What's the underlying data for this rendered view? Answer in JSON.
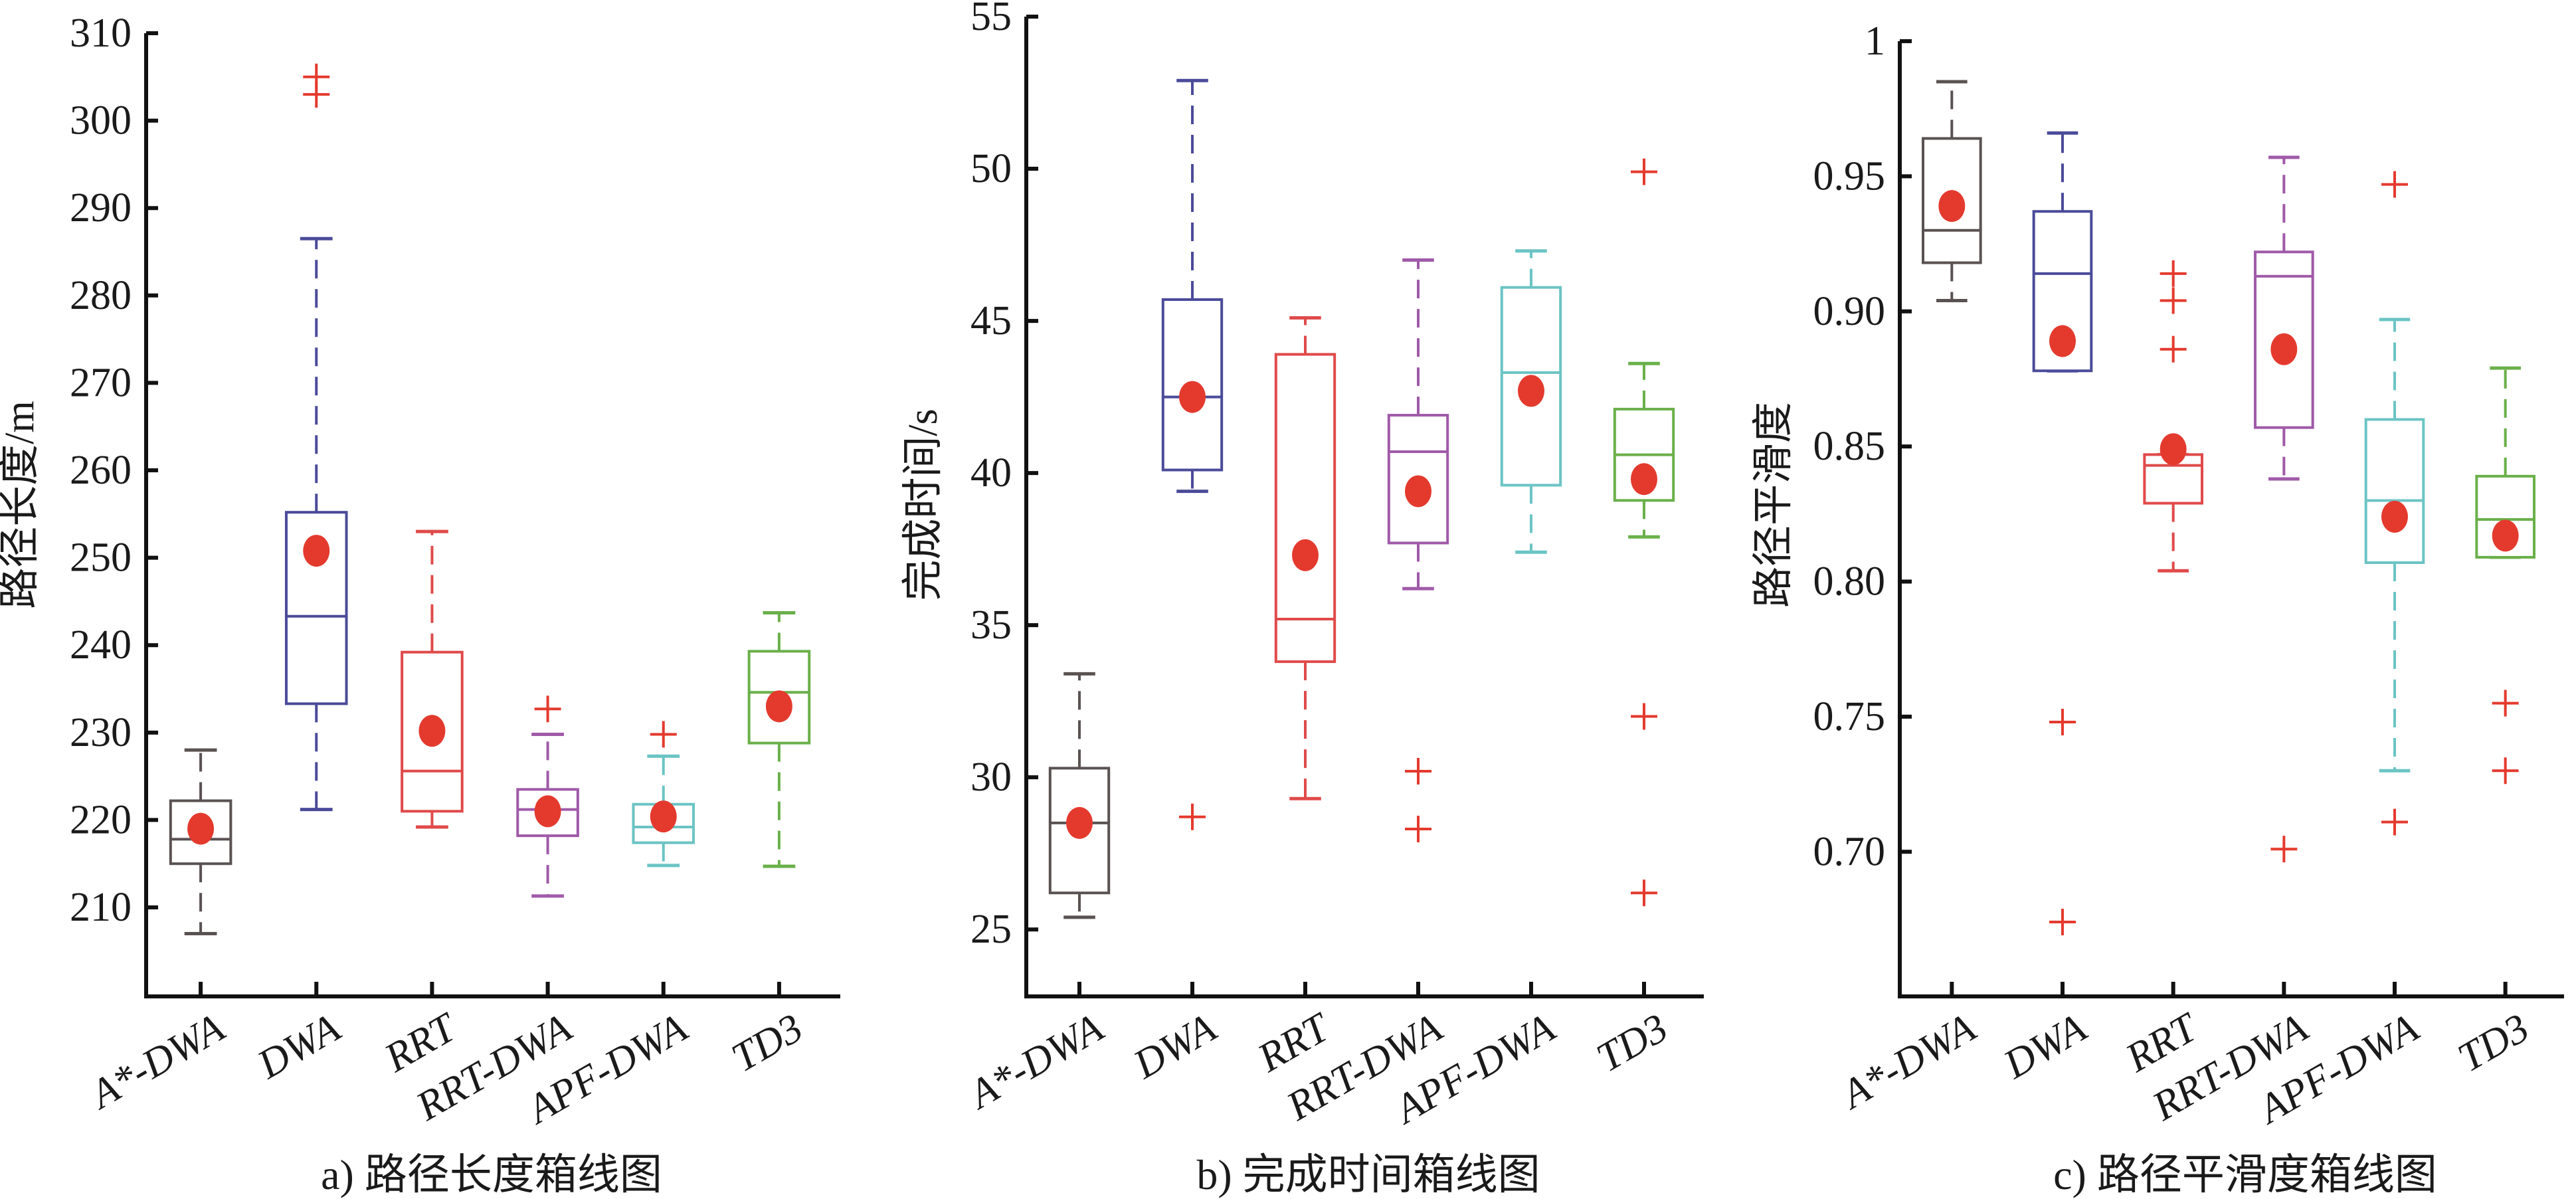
{
  "chart_data": [
    {
      "type": "box",
      "caption": "a) 路径长度箱线图",
      "ylabel": "路径长度/m",
      "ylim": [
        204,
        310
      ],
      "yticks": [
        210,
        220,
        230,
        240,
        250,
        260,
        270,
        280,
        290,
        300,
        310
      ],
      "ytick_labels": [
        "210",
        "220",
        "230",
        "240",
        "250",
        "260",
        "270",
        "280",
        "290",
        "300",
        "310"
      ],
      "categories": [
        "A*-DWA",
        "DWA",
        "RRT",
        "RRT-DWA",
        "APF-DWA",
        "TD3"
      ],
      "colors": [
        "#5a5252",
        "#4b4b9a",
        "#e04a4a",
        "#a05aa8",
        "#6cc4c4",
        "#6ab04a"
      ],
      "series": [
        {
          "name": "A*-DWA",
          "whisker_low": 207.0,
          "q1": 215.0,
          "median": 217.8,
          "q3": 222.2,
          "whisker_high": 228.0,
          "mean": 219.0,
          "outliers": []
        },
        {
          "name": "DWA",
          "whisker_low": 221.2,
          "q1": 233.3,
          "median": 243.3,
          "q3": 255.2,
          "whisker_high": 286.5,
          "mean": 250.8,
          "outliers": [
            303.0,
            305.0
          ]
        },
        {
          "name": "RRT",
          "whisker_low": 219.2,
          "q1": 221.0,
          "median": 225.6,
          "q3": 239.2,
          "whisker_high": 253.0,
          "mean": 230.2,
          "outliers": []
        },
        {
          "name": "RRT-DWA",
          "whisker_low": 211.3,
          "q1": 218.2,
          "median": 221.2,
          "q3": 223.5,
          "whisker_high": 229.8,
          "mean": 221.0,
          "outliers": [
            232.7
          ]
        },
        {
          "name": "APF-DWA",
          "whisker_low": 214.8,
          "q1": 217.4,
          "median": 219.2,
          "q3": 221.8,
          "whisker_high": 227.3,
          "mean": 220.4,
          "outliers": [
            229.8
          ]
        },
        {
          "name": "TD3",
          "whisker_low": 214.7,
          "q1": 228.8,
          "median": 234.6,
          "q3": 239.3,
          "whisker_high": 243.7,
          "mean": 233.0,
          "outliers": []
        }
      ],
      "mean_marker_color": "#e43a2e",
      "outlier_marker_color": "#e43a2e",
      "grid": false
    },
    {
      "type": "box",
      "caption": "b) 完成时间箱线图",
      "ylabel": "完成时间/s",
      "ylim": [
        24,
        55
      ],
      "yticks": [
        25,
        30,
        35,
        40,
        45,
        50,
        55
      ],
      "ytick_labels": [
        "25",
        "30",
        "35",
        "40",
        "45",
        "50",
        "55"
      ],
      "categories": [
        "A*-DWA",
        "DWA",
        "RRT",
        "RRT-DWA",
        "APF-DWA",
        "TD3"
      ],
      "colors": [
        "#5a5252",
        "#4b4b9a",
        "#e04a4a",
        "#a05aa8",
        "#6cc4c4",
        "#6ab04a"
      ],
      "series": [
        {
          "name": "A*-DWA",
          "whisker_low": 25.4,
          "q1": 26.2,
          "median": 28.5,
          "q3": 30.3,
          "whisker_high": 33.4,
          "mean": 28.5,
          "outliers": []
        },
        {
          "name": "DWA",
          "whisker_low": 39.4,
          "q1": 40.1,
          "median": 42.5,
          "q3": 45.7,
          "whisker_high": 52.9,
          "mean": 42.5,
          "outliers": [
            28.7
          ]
        },
        {
          "name": "RRT",
          "whisker_low": 29.3,
          "q1": 33.8,
          "median": 35.2,
          "q3": 43.9,
          "whisker_high": 45.1,
          "mean": 37.3,
          "outliers": []
        },
        {
          "name": "RRT-DWA",
          "whisker_low": 36.2,
          "q1": 37.7,
          "median": 40.7,
          "q3": 41.9,
          "whisker_high": 47.0,
          "mean": 39.4,
          "outliers": [
            30.2,
            28.3
          ]
        },
        {
          "name": "APF-DWA",
          "whisker_low": 37.4,
          "q1": 39.6,
          "median": 43.3,
          "q3": 46.1,
          "whisker_high": 47.3,
          "mean": 42.7,
          "outliers": []
        },
        {
          "name": "TD3",
          "whisker_low": 37.9,
          "q1": 39.1,
          "median": 40.6,
          "q3": 42.1,
          "whisker_high": 43.6,
          "mean": 39.8,
          "outliers": [
            49.9,
            32.0,
            26.2
          ]
        }
      ],
      "mean_marker_color": "#e43a2e",
      "outlier_marker_color": "#e43a2e",
      "grid": false
    },
    {
      "type": "box",
      "caption": "c) 路径平滑度箱线图",
      "ylabel": "路径平滑度",
      "ylim": [
        0.66,
        1.0
      ],
      "yticks": [
        0.7,
        0.75,
        0.8,
        0.85,
        0.9,
        0.95,
        1.0
      ],
      "ytick_labels": [
        "0.70",
        "0.75",
        "0.80",
        "0.85",
        "0.90",
        "0.95",
        "1"
      ],
      "categories": [
        "A*-DWA",
        "DWA",
        "RRT",
        "RRT-DWA",
        "APF-DWA",
        "TD3"
      ],
      "colors": [
        "#5a5252",
        "#4b4b9a",
        "#e04a4a",
        "#a05aa8",
        "#6cc4c4",
        "#6ab04a"
      ],
      "series": [
        {
          "name": "A*-DWA",
          "whisker_low": 0.904,
          "q1": 0.918,
          "median": 0.93,
          "q3": 0.964,
          "whisker_high": 0.985,
          "mean": 0.939,
          "outliers": []
        },
        {
          "name": "DWA",
          "whisker_low": 0.878,
          "q1": 0.878,
          "median": 0.914,
          "q3": 0.937,
          "whisker_high": 0.966,
          "mean": 0.889,
          "outliers": [
            0.748,
            0.674
          ]
        },
        {
          "name": "RRT",
          "whisker_low": 0.804,
          "q1": 0.829,
          "median": 0.843,
          "q3": 0.847,
          "whisker_high": 0.847,
          "mean": 0.849,
          "outliers": [
            0.914,
            0.904,
            0.886
          ]
        },
        {
          "name": "RRT-DWA",
          "whisker_low": 0.838,
          "q1": 0.857,
          "median": 0.913,
          "q3": 0.922,
          "whisker_high": 0.957,
          "mean": 0.886,
          "outliers": [
            0.701
          ]
        },
        {
          "name": "APF-DWA",
          "whisker_low": 0.73,
          "q1": 0.807,
          "median": 0.83,
          "q3": 0.86,
          "whisker_high": 0.897,
          "mean": 0.824,
          "outliers": [
            0.947,
            0.711
          ]
        },
        {
          "name": "TD3",
          "whisker_low": 0.809,
          "q1": 0.809,
          "median": 0.823,
          "q3": 0.839,
          "whisker_high": 0.879,
          "mean": 0.817,
          "outliers": [
            0.755,
            0.73
          ]
        }
      ],
      "mean_marker_color": "#e43a2e",
      "outlier_marker_color": "#e43a2e",
      "grid": false
    }
  ]
}
